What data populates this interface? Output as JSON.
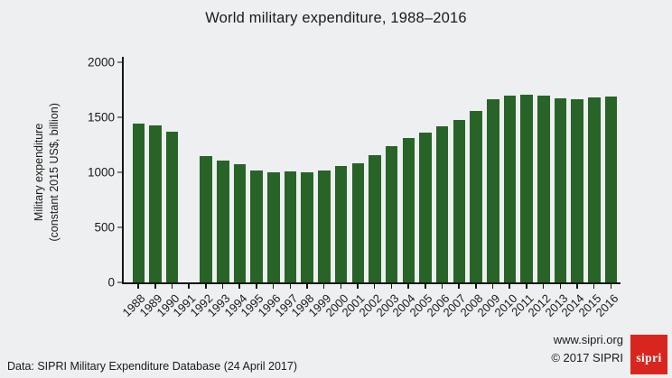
{
  "chart_data": {
    "type": "bar",
    "title": "World military expenditure, 1988–2016",
    "ylabel_line1": "Military expenditure",
    "ylabel_line2": "(constant 2015 US$, billion)",
    "categories": [
      "1988",
      "1989",
      "1990",
      "1991",
      "1992",
      "1993",
      "1994",
      "1995",
      "1996",
      "1997",
      "1998",
      "1999",
      "2000",
      "2001",
      "2002",
      "2003",
      "2004",
      "2005",
      "2006",
      "2007",
      "2008",
      "2009",
      "2010",
      "2011",
      "2012",
      "2013",
      "2014",
      "2015",
      "2016"
    ],
    "values": [
      1441,
      1425,
      1368,
      null,
      1145,
      1110,
      1072,
      1017,
      998,
      1009,
      1003,
      1018,
      1056,
      1085,
      1158,
      1235,
      1313,
      1363,
      1420,
      1478,
      1561,
      1660,
      1698,
      1703,
      1696,
      1673,
      1663,
      1680,
      1686
    ],
    "ylim": [
      0,
      2000
    ],
    "yticks": [
      0,
      500,
      1000,
      1500,
      2000
    ],
    "grid": false,
    "legend": "none",
    "bar_color": "#286428",
    "background_color": "#edeff0",
    "axis_color": "#151515"
  },
  "footer": {
    "source": "Data: SIPRI Military Expenditure Database (24 April 2017)",
    "website": "www.sipri.org",
    "copyright": "© 2017 SIPRI",
    "logo_text": "sipri",
    "logo_color": "#d8261f"
  }
}
